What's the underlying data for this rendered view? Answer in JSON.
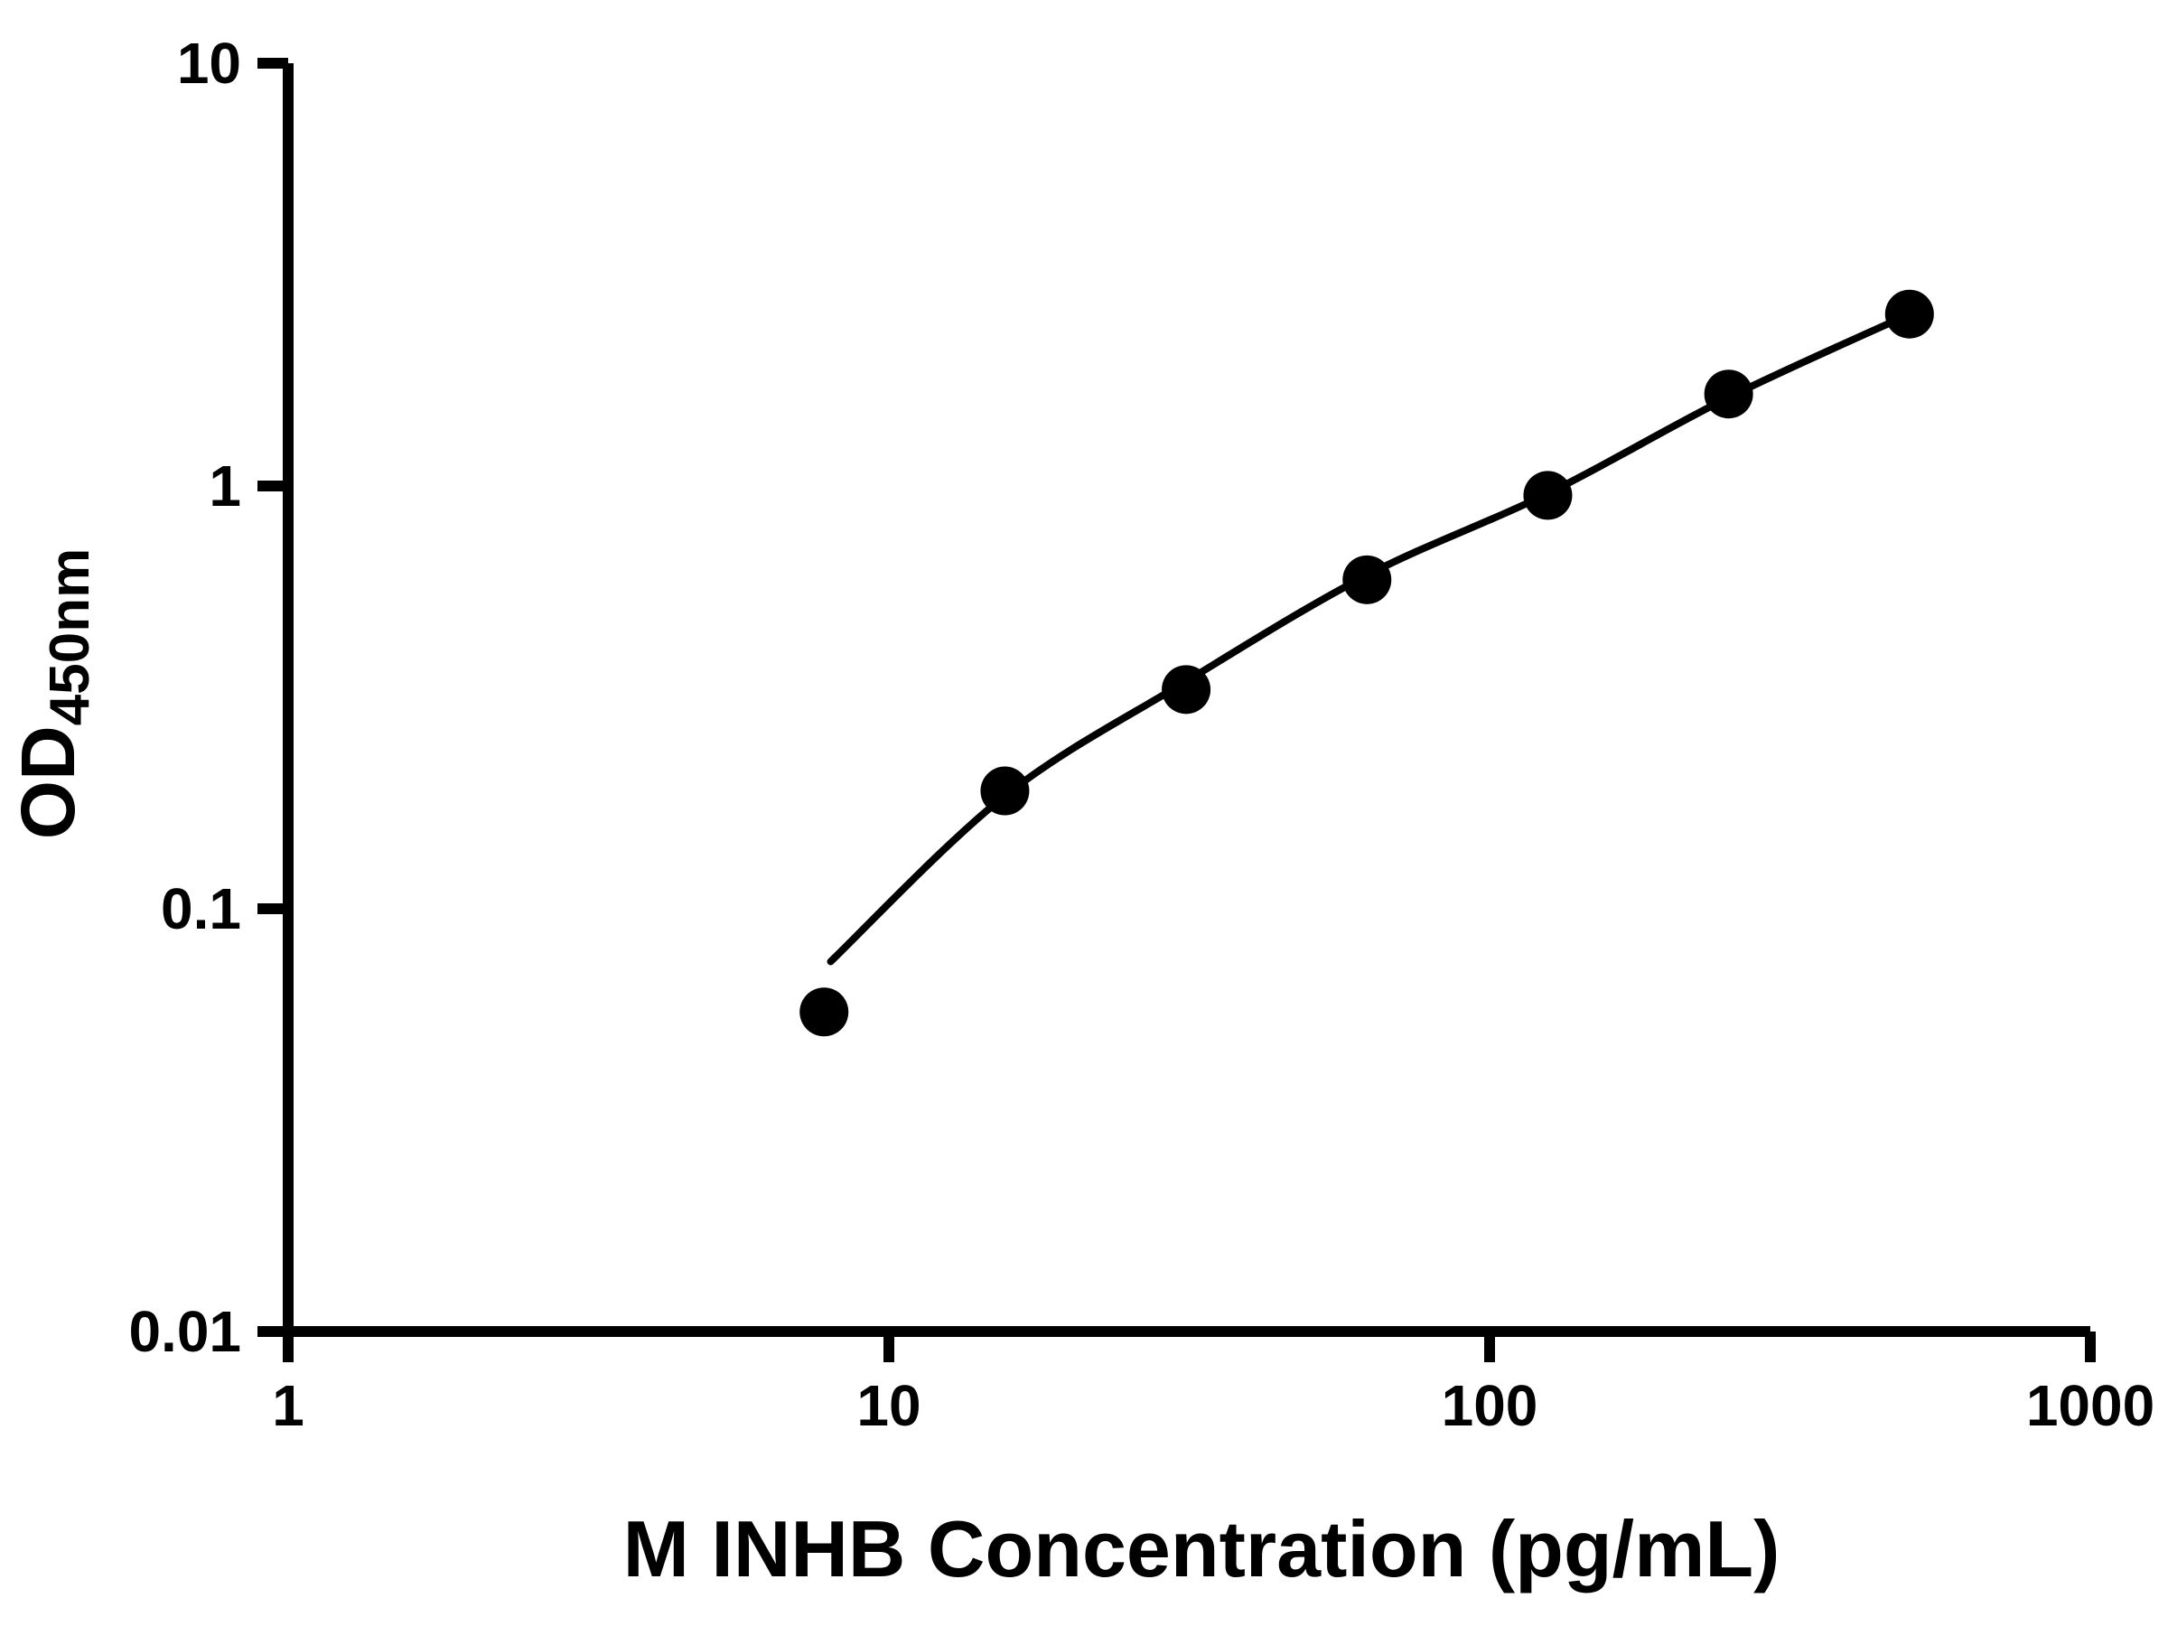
{
  "chart_data": {
    "type": "scatter",
    "title": "",
    "xlabel": "M INHB Concentration (pg/mL)",
    "ylabel": "OD450nm",
    "ylabel_main": "OD",
    "ylabel_sub": "450nm",
    "x_scale": "log",
    "y_scale": "log",
    "xlim": [
      1,
      1000
    ],
    "ylim": [
      0.01,
      10
    ],
    "x_ticks": [
      1,
      10,
      100,
      1000
    ],
    "x_tick_labels": [
      "1",
      "10",
      "100",
      "1000"
    ],
    "y_ticks": [
      0.01,
      0.1,
      1,
      10
    ],
    "y_tick_labels": [
      "0.01",
      "0.1",
      "1",
      "10"
    ],
    "legend": "none",
    "grid": false,
    "points": [
      {
        "x": 7.8,
        "y": 0.057
      },
      {
        "x": 15.6,
        "y": 0.19
      },
      {
        "x": 31.25,
        "y": 0.33
      },
      {
        "x": 62.5,
        "y": 0.6
      },
      {
        "x": 125,
        "y": 0.95
      },
      {
        "x": 250,
        "y": 1.65
      },
      {
        "x": 500,
        "y": 2.55
      }
    ],
    "curve": [
      {
        "x": 8,
        "y": 0.075
      },
      {
        "x": 15.6,
        "y": 0.185
      },
      {
        "x": 31.25,
        "y": 0.345
      },
      {
        "x": 62.5,
        "y": 0.615
      },
      {
        "x": 125,
        "y": 0.96
      },
      {
        "x": 250,
        "y": 1.62
      },
      {
        "x": 500,
        "y": 2.55
      }
    ],
    "colors": {
      "points": "#000000",
      "curve": "#000000",
      "axis": "#000000",
      "background": "#ffffff"
    }
  }
}
